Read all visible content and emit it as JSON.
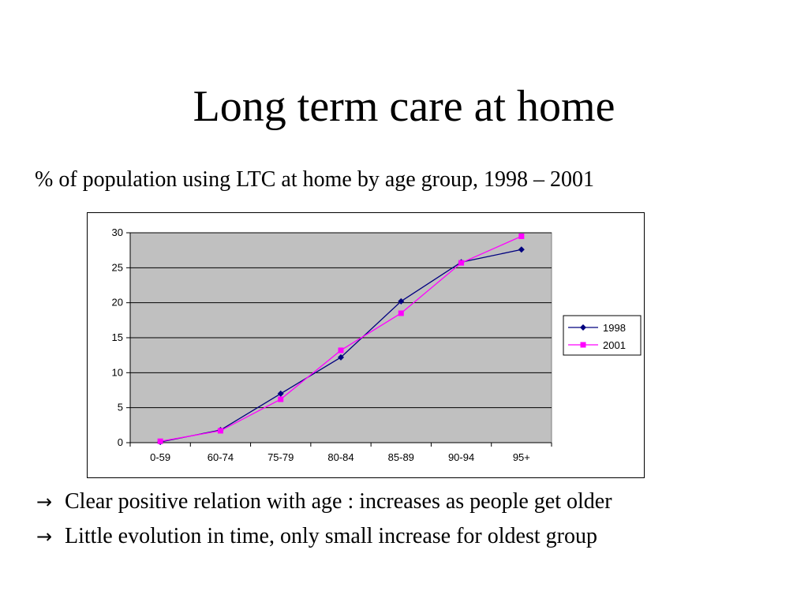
{
  "slide": {
    "title": "Long term care at home",
    "subtitle": "% of population using LTC at home by age group, 1998 – 2001",
    "bullets": [
      {
        "icon": "arrow-right-icon",
        "glyph": "→",
        "text": "Clear positive relation with age : increases as people get older"
      },
      {
        "icon": "arrow-right-icon",
        "glyph": "→",
        "text": "Little evolution in time, only small increase for oldest group"
      }
    ]
  },
  "chart_data": {
    "type": "line",
    "categories": [
      "0-59",
      "60-74",
      "75-79",
      "80-84",
      "85-89",
      "90-94",
      "95+"
    ],
    "series": [
      {
        "name": "1998",
        "values": [
          0.1,
          1.8,
          7.0,
          12.2,
          20.2,
          25.8,
          27.6
        ],
        "color": "#00007f",
        "marker": "diamond"
      },
      {
        "name": "2001",
        "values": [
          0.2,
          1.7,
          6.2,
          13.2,
          18.5,
          25.7,
          29.5
        ],
        "color": "#ff00ff",
        "marker": "square"
      }
    ],
    "ylim": [
      0,
      30
    ],
    "yticks": [
      0,
      5,
      10,
      15,
      20,
      25,
      30
    ],
    "grid": true,
    "plot_background": "#c0c0c0",
    "legend": "right"
  }
}
